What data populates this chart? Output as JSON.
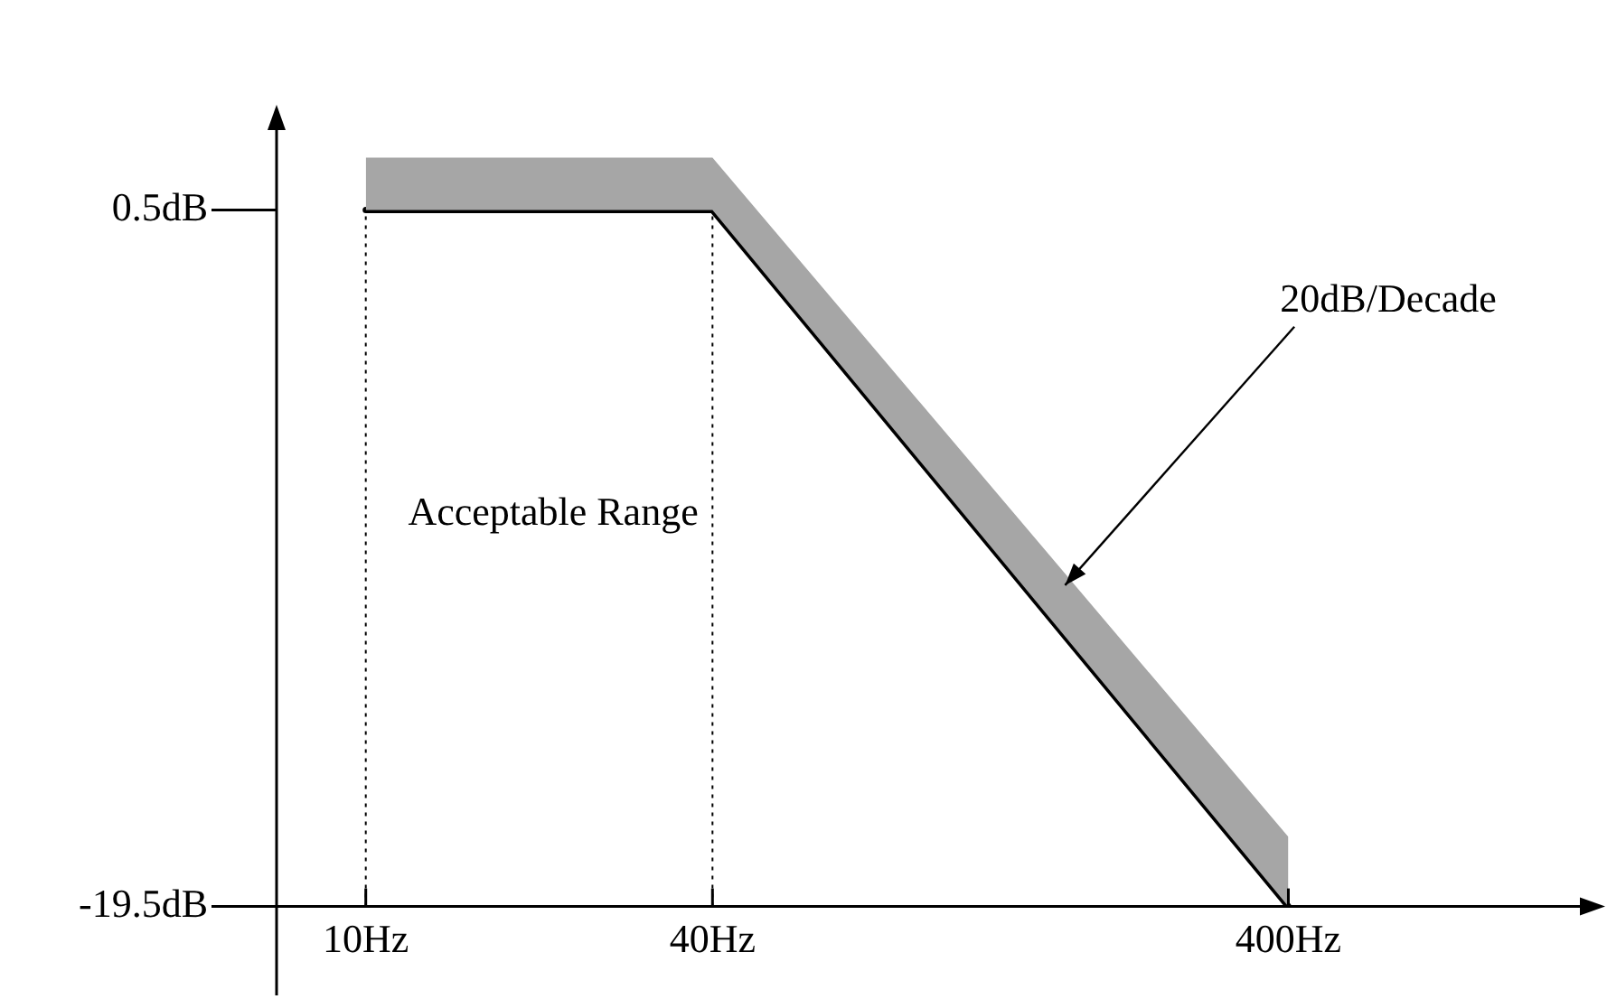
{
  "chart_data": {
    "type": "line",
    "log": "x",
    "x": [
      10,
      40,
      400
    ],
    "series": [
      {
        "color": "#000000",
        "values": [
          0.5,
          0.5,
          -19.5
        ],
        "lower": [
          0.5,
          0.5,
          -19.5
        ],
        "upper": [
          2,
          2,
          -17.5
        ]
      }
    ],
    "xlim": [
      7,
      1340
    ],
    "ylim": [
      -19.5,
      3
    ],
    "xticks": [
      {
        "value": 10,
        "label": "10Hz"
      },
      {
        "value": 40,
        "label": "40Hz"
      },
      {
        "value": 400,
        "label": "400Hz"
      }
    ],
    "yticks": [
      {
        "value": 0.5,
        "label": "0.5dB"
      },
      {
        "value": -19.5,
        "label": "-19.5dB"
      }
    ],
    "ref_lines": [
      {
        "axis": "x",
        "value": 10,
        "color": "#000000",
        "line_style": "dotted"
      },
      {
        "axis": "x",
        "value": 40,
        "color": "#000000",
        "line_style": "dotted"
      }
    ],
    "annotations": [
      "Acceptable Range",
      "20dB/Decade"
    ],
    "grid": false,
    "legend": false,
    "marker": "none",
    "line_style": "solid"
  }
}
